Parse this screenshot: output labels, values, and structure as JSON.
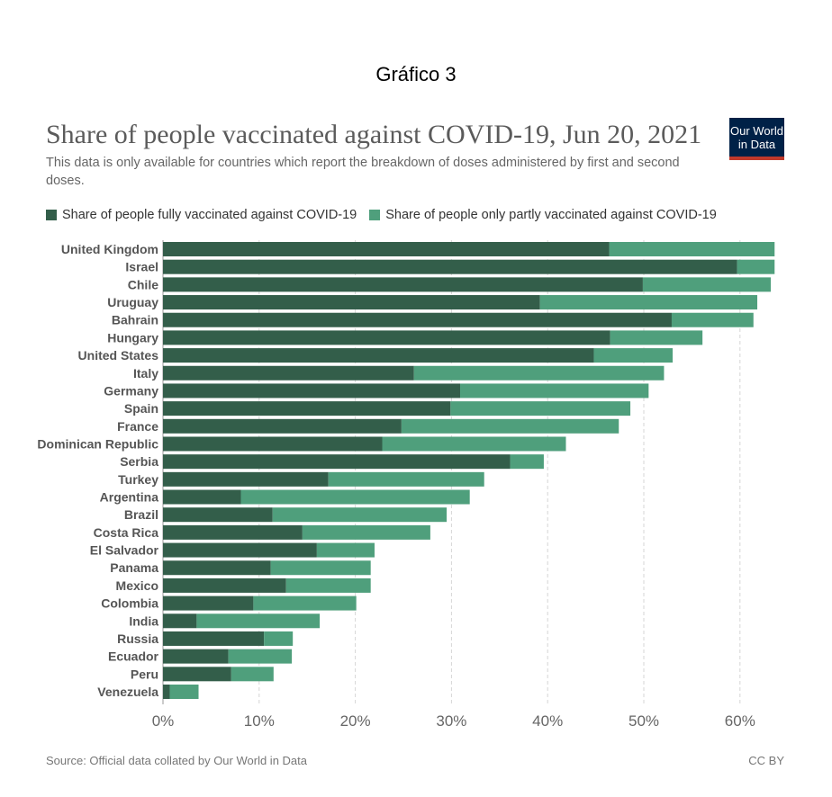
{
  "page": {
    "heading": "Gráfico 3",
    "title": "Share of people vaccinated against COVID-19, Jun 20, 2021",
    "subtitle": "This data is only available for countries which report the breakdown of doses administered by first and second doses.",
    "logo_line1": "Our World",
    "logo_line2": "in Data",
    "source": "Source: Official data collated by Our World in Data",
    "license": "CC BY"
  },
  "colors": {
    "fully": "#335e4a",
    "partly": "#4f9f7c",
    "grid": "#d6d6d6"
  },
  "chart_data": {
    "type": "bar",
    "orientation": "horizontal",
    "stacked": true,
    "title": "Share of people vaccinated against COVID-19, Jun 20, 2021",
    "categories": [
      "United Kingdom",
      "Israel",
      "Chile",
      "Uruguay",
      "Bahrain",
      "Hungary",
      "United States",
      "Italy",
      "Germany",
      "Spain",
      "France",
      "Dominican Republic",
      "Serbia",
      "Turkey",
      "Argentina",
      "Brazil",
      "Costa Rica",
      "El Salvador",
      "Panama",
      "Mexico",
      "Colombia",
      "India",
      "Russia",
      "Ecuador",
      "Peru",
      "Venezuela"
    ],
    "series": [
      {
        "name": "Share of people fully vaccinated against COVID-19",
        "values": [
          46.4,
          59.7,
          49.9,
          39.2,
          52.9,
          46.5,
          44.8,
          26.1,
          30.9,
          29.9,
          24.8,
          22.8,
          36.1,
          17.2,
          8.1,
          11.4,
          14.5,
          16.0,
          11.2,
          12.8,
          9.4,
          3.5,
          10.5,
          6.8,
          7.1,
          0.7
        ]
      },
      {
        "name": "Share of people only partly vaccinated against COVID-19",
        "values": [
          17.2,
          3.9,
          13.3,
          22.6,
          8.5,
          9.6,
          8.2,
          26.0,
          19.6,
          18.7,
          22.6,
          19.1,
          3.5,
          16.2,
          23.8,
          18.1,
          13.3,
          6.0,
          10.4,
          8.8,
          10.7,
          12.8,
          3.0,
          6.6,
          4.4,
          3.0
        ]
      }
    ],
    "xlim": [
      0,
      64
    ],
    "xticks": [
      "0%",
      "10%",
      "20%",
      "30%",
      "40%",
      "50%",
      "60%"
    ],
    "xtick_values": [
      0,
      10,
      20,
      30,
      40,
      50,
      60
    ],
    "grid": true,
    "legend": "top"
  }
}
